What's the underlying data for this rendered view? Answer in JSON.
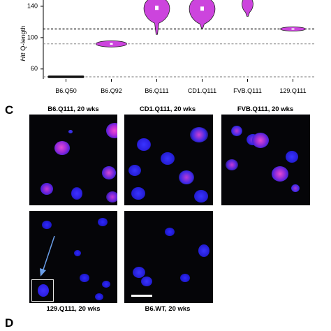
{
  "chart_data": {
    "type": "violin",
    "ylabel": "Htt Q-length",
    "ylabel_italic_prefix": "Htt",
    "ylabel_rest": " Q-length",
    "ylim": [
      50,
      148
    ],
    "yticks": [
      60,
      100,
      140
    ],
    "reference_lines": [
      111,
      92,
      50
    ],
    "categories": [
      "B6.Q50",
      "B6.Q92",
      "B6.Q111",
      "CD1.Q111",
      "FVB.Q111",
      "129.Q111"
    ],
    "series": [
      {
        "values": [
          50,
          92,
          138,
          137,
          145,
          111
        ]
      }
    ],
    "violin_color": "#cc44dd"
  },
  "panels": {
    "c_label": "C",
    "d_label": "D",
    "images": [
      {
        "title": "B6.Q111, 20 wks"
      },
      {
        "title": "CD1.Q111, 20 wks"
      },
      {
        "title": "FVB.Q111, 20 wks"
      },
      {
        "title": "129.Q111, 20 wks"
      },
      {
        "title": "B6.WT, 20 wks"
      }
    ]
  }
}
